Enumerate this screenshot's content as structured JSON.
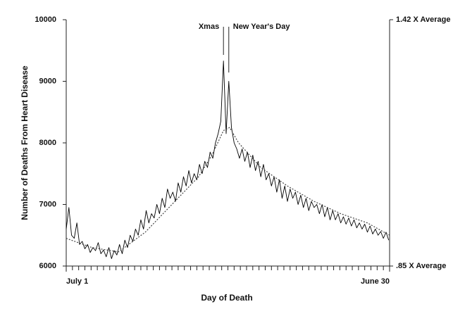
{
  "chart_data": {
    "type": "line",
    "xlabel": "Day of Death",
    "ylabel": "Number of Deaths From Heart Disease",
    "xlim": [
      1,
      365
    ],
    "xticks": [
      {
        "value": 1,
        "label": "July 1"
      },
      {
        "value": 365,
        "label": "June 30"
      }
    ],
    "xminorticks": [
      8,
      15,
      22,
      29,
      36,
      43,
      50,
      57,
      64,
      71,
      78,
      85,
      92,
      99,
      106,
      113,
      120,
      127,
      134,
      141,
      148,
      155,
      162,
      169,
      176,
      183,
      190,
      197,
      204,
      211,
      218,
      225,
      232,
      239,
      246,
      253,
      260,
      267,
      274,
      281,
      288,
      295,
      302,
      309,
      316,
      323,
      330,
      337,
      344,
      351,
      358
    ],
    "ylim": [
      6000,
      10000
    ],
    "yticks": [
      6000,
      7000,
      8000,
      9000,
      10000
    ],
    "y2lim": [
      0.85,
      1.42
    ],
    "y2ticks": [
      {
        "value": 0.85,
        "label": ".85 X Average"
      },
      {
        "value": 1.42,
        "label": "1.42 X Average"
      }
    ],
    "grid": false,
    "annotations": [
      {
        "text": "Xmas",
        "x": 178
      },
      {
        "text": "New Year's Day",
        "x": 184
      }
    ],
    "series": [
      {
        "color": "#000000",
        "style": "solid",
        "x": [
          1,
          4,
          7,
          10,
          13,
          16,
          19,
          22,
          25,
          28,
          31,
          34,
          37,
          40,
          43,
          46,
          49,
          52,
          55,
          58,
          61,
          64,
          67,
          70,
          73,
          76,
          79,
          82,
          85,
          88,
          91,
          94,
          97,
          100,
          103,
          106,
          109,
          112,
          115,
          118,
          121,
          124,
          127,
          130,
          133,
          136,
          139,
          142,
          145,
          148,
          151,
          154,
          157,
          160,
          163,
          166,
          169,
          172,
          175,
          178,
          181,
          184,
          187,
          190,
          193,
          196,
          199,
          202,
          205,
          208,
          211,
          214,
          217,
          220,
          223,
          226,
          229,
          232,
          235,
          238,
          241,
          244,
          247,
          250,
          253,
          256,
          259,
          262,
          265,
          268,
          271,
          274,
          277,
          280,
          283,
          286,
          289,
          292,
          295,
          298,
          301,
          304,
          307,
          310,
          313,
          316,
          319,
          322,
          325,
          328,
          331,
          334,
          337,
          340,
          343,
          346,
          349,
          352,
          355,
          358,
          361,
          364
        ],
        "values": [
          6600,
          6950,
          6500,
          6450,
          6700,
          6350,
          6400,
          6280,
          6350,
          6220,
          6300,
          6250,
          6380,
          6200,
          6260,
          6150,
          6300,
          6120,
          6250,
          6180,
          6350,
          6200,
          6420,
          6300,
          6500,
          6400,
          6600,
          6500,
          6750,
          6600,
          6900,
          6700,
          6850,
          6780,
          7000,
          6850,
          7100,
          6950,
          7250,
          7100,
          7200,
          7050,
          7350,
          7200,
          7450,
          7300,
          7550,
          7350,
          7500,
          7400,
          7650,
          7500,
          7700,
          7600,
          7850,
          7750,
          8000,
          8150,
          8350,
          9330,
          8150,
          9000,
          8250,
          8000,
          7900,
          7750,
          7900,
          7700,
          7850,
          7600,
          7800,
          7550,
          7700,
          7450,
          7650,
          7400,
          7500,
          7300,
          7450,
          7200,
          7400,
          7100,
          7300,
          7050,
          7250,
          7100,
          7200,
          7000,
          7150,
          6950,
          7100,
          6900,
          7050,
          6950,
          7000,
          6850,
          7000,
          6800,
          6950,
          6750,
          6900,
          6750,
          6850,
          6700,
          6800,
          6680,
          6780,
          6650,
          6750,
          6620,
          6700,
          6600,
          6680,
          6550,
          6650,
          6520,
          6600,
          6500,
          6560,
          6450,
          6550,
          6420
        ]
      },
      {
        "color": "#444444",
        "style": "dotted",
        "x": [
          1,
          30,
          60,
          90,
          120,
          150,
          165,
          178,
          185,
          195,
          220,
          250,
          280,
          310,
          340,
          365
        ],
        "values": [
          6450,
          6300,
          6230,
          6550,
          7000,
          7450,
          7800,
          8200,
          8250,
          8000,
          7600,
          7300,
          7050,
          6850,
          6700,
          6500
        ]
      }
    ]
  }
}
